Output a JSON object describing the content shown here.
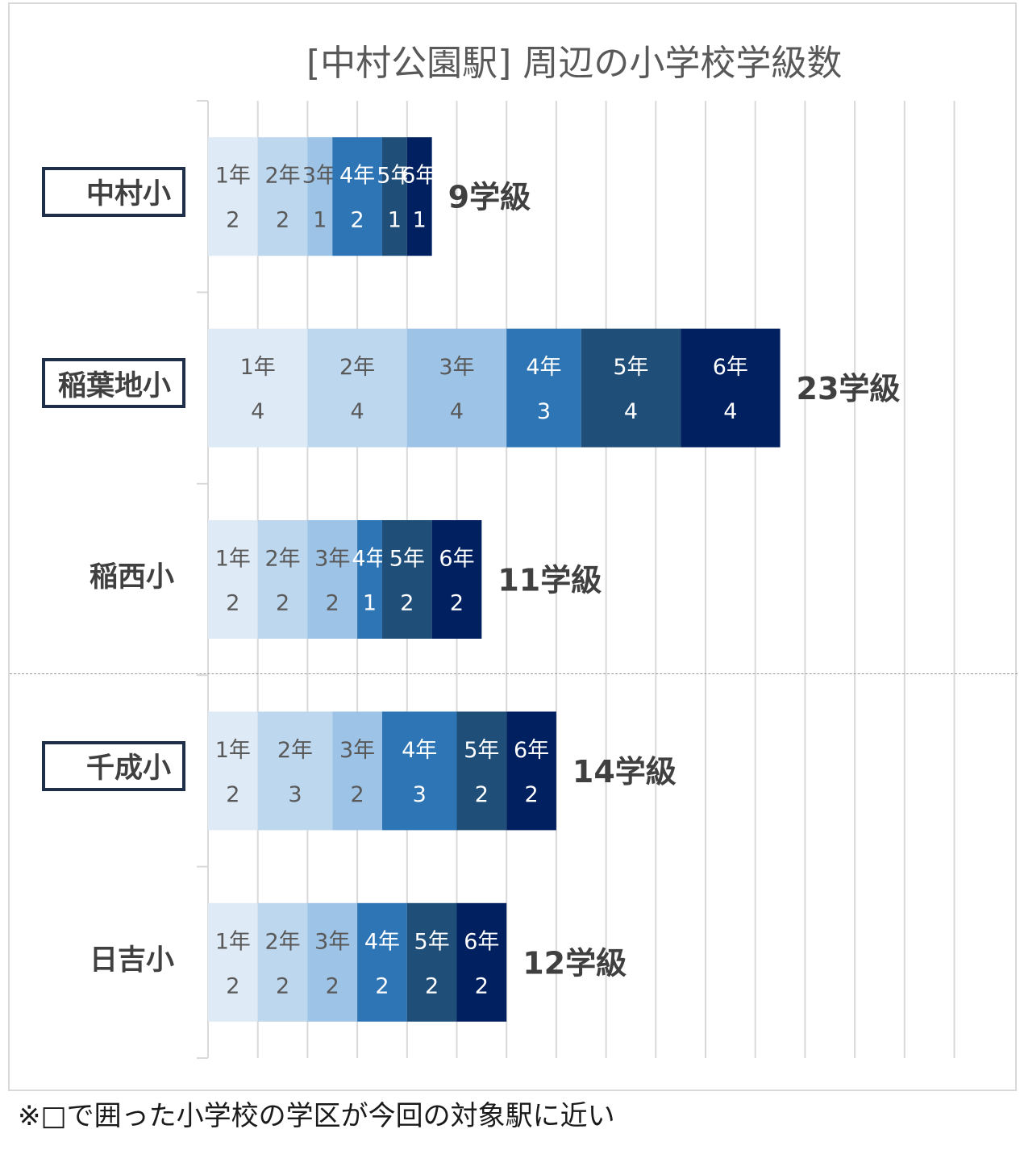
{
  "chart_data": {
    "type": "bar",
    "orientation": "horizontal",
    "stacked": true,
    "title": "[中村公園駅] 周辺の小学校学級数",
    "grade_labels": [
      "1年",
      "2年",
      "3年",
      "4年",
      "5年",
      "6年"
    ],
    "grade_colors": [
      "#deeaf6",
      "#bdd7ee",
      "#9dc3e6",
      "#2e75b6",
      "#1f4e79",
      "#002060"
    ],
    "categories": [
      "中村小",
      "稲葉地小",
      "稲西小",
      "千成小",
      "日吉小"
    ],
    "highlighted": [
      true,
      true,
      false,
      true,
      false
    ],
    "series": [
      {
        "values": [
          2,
          4,
          2,
          2,
          2
        ]
      },
      {
        "values": [
          2,
          4,
          2,
          3,
          2
        ]
      },
      {
        "values": [
          1,
          4,
          2,
          2,
          2
        ]
      },
      {
        "values": [
          2,
          3,
          1,
          3,
          2
        ]
      },
      {
        "values": [
          1,
          4,
          2,
          2,
          2
        ]
      },
      {
        "values": [
          1,
          4,
          2,
          2,
          2
        ]
      }
    ],
    "totals": [
      "9学級",
      "23学級",
      "11学級",
      "14学級",
      "12学級"
    ],
    "xlim": [
      0,
      30
    ],
    "grid": true,
    "legend": "none"
  },
  "footnote": "※□で囲った小学校の学区が今回の対象駅に近い"
}
